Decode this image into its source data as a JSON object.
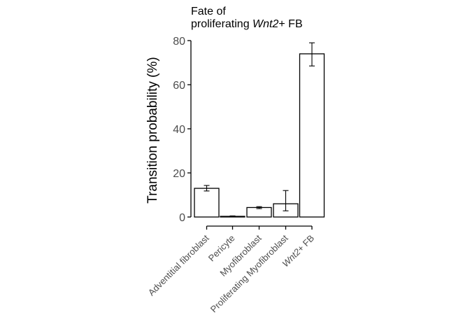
{
  "chart_data": {
    "type": "bar",
    "title_lines": [
      [
        {
          "text": "Fate of",
          "italic": false
        }
      ],
      [
        {
          "text": "proliferating ",
          "italic": false
        },
        {
          "text": "Wnt2",
          "italic": true
        },
        {
          "text": "+ FB",
          "italic": false
        }
      ]
    ],
    "ylabel": "Transition probability (%)",
    "ylim": [
      0,
      80
    ],
    "yticks": [
      "0",
      "20",
      "40",
      "60",
      "80"
    ],
    "categories": [
      [
        {
          "text": "Adventitial fibroblast",
          "italic": false
        }
      ],
      [
        {
          "text": "Pericyte",
          "italic": false
        }
      ],
      [
        {
          "text": "Myofibroblast",
          "italic": false
        }
      ],
      [
        {
          "text": "Proliferating Myofibroblast",
          "italic": false
        }
      ],
      [
        {
          "text": "Wnt2",
          "italic": true
        },
        {
          "text": "+ FB",
          "italic": false
        }
      ]
    ],
    "values": [
      13.0,
      0.3,
      4.3,
      6.0,
      74.0
    ],
    "error_low": [
      11.8,
      0.1,
      3.8,
      2.8,
      68.5
    ],
    "error_high": [
      14.3,
      0.5,
      4.7,
      12.0,
      79.0
    ],
    "grid": false,
    "legend": "none"
  }
}
